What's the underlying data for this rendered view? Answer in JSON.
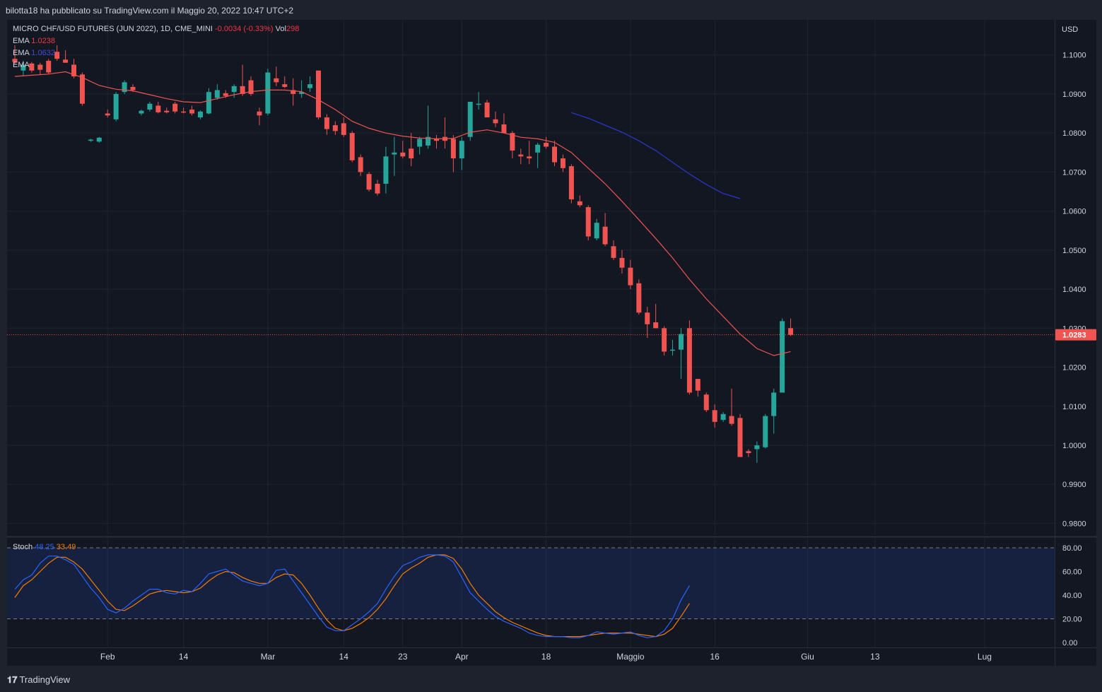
{
  "header": {
    "publish_text": "bilotta18 ha pubblicato su TradingView.com il Maggio 20, 2022 10:47 UTC+2"
  },
  "legend": {
    "symbol": "MICRO CHF/USD FUTURES (JUN 2022), 1D, CME_MINI",
    "change": "-0.0034 (-0.33%)",
    "vol_label": "Vol",
    "vol_value": "298",
    "ema1_label": "EMA",
    "ema1_value": "1.0238",
    "ema2_label": "EMA",
    "ema2_value": "1.0632",
    "ema3_label": "EMA",
    "stoch_label": "Stoch",
    "stoch_k": "48.25",
    "stoch_d": "33.49"
  },
  "branding": {
    "logo_text": "TradingView"
  },
  "colors": {
    "up": "#26a69a",
    "down": "#f05350",
    "ema_fast": "#f05350",
    "ema_slow": "#2b35c7",
    "stoch_k": "#2962ff",
    "stoch_d": "#f57c00"
  },
  "chart_data": {
    "type": "candlestick",
    "price_axis_unit": "USD",
    "last_price": "1.0283",
    "price_ticks": [
      "1.1000",
      "1.0900",
      "1.0800",
      "1.0700",
      "1.0600",
      "1.0500",
      "1.0400",
      "1.0300",
      "1.0200",
      "1.0100",
      "1.0000",
      "0.9900",
      "0.9800"
    ],
    "ylim": [
      0.977,
      1.109
    ],
    "time_ticks": [
      {
        "label": "Feb",
        "i": 11
      },
      {
        "label": "14",
        "i": 20
      },
      {
        "label": "Mar",
        "i": 30
      },
      {
        "label": "14",
        "i": 39
      },
      {
        "label": "23",
        "i": 46
      },
      {
        "label": "Apr",
        "i": 53
      },
      {
        "label": "18",
        "i": 63
      },
      {
        "label": "Maggio",
        "i": 73
      },
      {
        "label": "16",
        "i": 83
      },
      {
        "label": "Giu",
        "i": 94
      },
      {
        "label": "13",
        "i": 102
      },
      {
        "label": "Lug",
        "i": 115
      }
    ],
    "candles": [
      [
        1.099,
        1.1025,
        1.0975,
        1.0982
      ],
      [
        1.096,
        1.0985,
        1.0945,
        1.0975
      ],
      [
        1.0978,
        1.0982,
        1.0955,
        1.096
      ],
      [
        1.0975,
        1.098,
        1.095,
        1.0962
      ],
      [
        1.0985,
        1.099,
        1.095,
        1.0955
      ],
      [
        1.1008,
        1.1025,
        1.0985,
        1.099
      ],
      [
        1.0988,
        1.1012,
        1.098,
        1.098
      ],
      [
        1.0975,
        1.099,
        1.094,
        1.0945
      ],
      [
        1.095,
        1.0955,
        1.087,
        1.0875
      ],
      [
        1.078,
        1.0785,
        1.0777,
        1.0783
      ],
      [
        1.0778,
        1.079,
        1.0775,
        1.0788
      ],
      [
        1.085,
        1.086,
        1.084,
        1.0845
      ],
      [
        1.0835,
        1.0905,
        1.083,
        1.09
      ],
      [
        1.0905,
        1.0935,
        1.09,
        1.093
      ],
      [
        1.0918,
        1.0925,
        1.0905,
        1.091
      ],
      [
        1.085,
        1.086,
        1.0845,
        1.0857
      ],
      [
        1.086,
        1.088,
        1.0855,
        1.0875
      ],
      [
        1.087,
        1.088,
        1.085,
        1.0853
      ],
      [
        1.0857,
        1.0865,
        1.085,
        1.0853
      ],
      [
        1.0875,
        1.088,
        1.085,
        1.0855
      ],
      [
        1.0855,
        1.0865,
        1.085,
        1.0853
      ],
      [
        1.086,
        1.087,
        1.0845,
        1.085
      ],
      [
        1.084,
        1.0858,
        1.0835,
        1.0855
      ],
      [
        1.085,
        1.0915,
        1.0848,
        1.0905
      ],
      [
        1.089,
        1.0925,
        1.0885,
        1.091
      ],
      [
        1.0902,
        1.091,
        1.089,
        1.0895
      ],
      [
        1.0905,
        1.0925,
        1.089,
        1.092
      ],
      [
        1.092,
        1.0975,
        1.0895,
        1.09
      ],
      [
        1.0935,
        1.0945,
        1.0895,
        1.09
      ],
      [
        1.0855,
        1.0865,
        1.082,
        1.0845
      ],
      [
        1.085,
        1.0965,
        1.0845,
        1.0955
      ],
      [
        1.094,
        1.097,
        1.092,
        1.093
      ],
      [
        1.0925,
        1.0945,
        1.0915,
        1.0918
      ],
      [
        1.091,
        1.094,
        1.087,
        1.09
      ],
      [
        1.09,
        1.0935,
        1.089,
        1.0905
      ],
      [
        1.0915,
        1.0945,
        1.0905,
        1.0925
      ],
      [
        1.096,
        1.096,
        1.0835,
        1.084
      ],
      [
        1.084,
        1.0848,
        1.0795,
        1.081
      ],
      [
        1.082,
        1.083,
        1.0795,
        1.0805
      ],
      [
        1.0825,
        1.084,
        1.079,
        1.0795
      ],
      [
        1.08,
        1.0805,
        1.0725,
        1.073
      ],
      [
        1.0738,
        1.0745,
        1.069,
        1.07
      ],
      [
        1.0695,
        1.07,
        1.065,
        1.0655
      ],
      [
        1.067,
        1.068,
        1.064,
        1.0645
      ],
      [
        1.067,
        1.0765,
        1.0645,
        1.074
      ],
      [
        1.0745,
        1.079,
        1.069,
        1.075
      ],
      [
        1.075,
        1.078,
        1.0735,
        1.074
      ],
      [
        1.076,
        1.08,
        1.0715,
        1.0735
      ],
      [
        1.0765,
        1.079,
        1.0745,
        1.0785
      ],
      [
        1.0768,
        1.087,
        1.076,
        1.079
      ],
      [
        1.0785,
        1.0795,
        1.076,
        1.078
      ],
      [
        1.079,
        1.084,
        1.076,
        1.078
      ],
      [
        1.0785,
        1.0795,
        1.07,
        1.0735
      ],
      [
        1.0735,
        1.079,
        1.0705,
        1.078
      ],
      [
        1.079,
        1.088,
        1.078,
        1.088
      ],
      [
        1.0875,
        1.0905,
        1.086,
        1.0875
      ],
      [
        1.0878,
        1.0885,
        1.084,
        1.084
      ],
      [
        1.0835,
        1.0855,
        1.0815,
        1.0825
      ],
      [
        1.0822,
        1.085,
        1.08,
        1.08
      ],
      [
        1.08,
        1.0805,
        1.0735,
        1.0755
      ],
      [
        1.0745,
        1.076,
        1.072,
        1.074
      ],
      [
        1.074,
        1.078,
        1.072,
        1.0735
      ],
      [
        1.075,
        1.0775,
        1.071,
        1.077
      ],
      [
        1.0775,
        1.079,
        1.076,
        1.0765
      ],
      [
        1.0765,
        1.078,
        1.0715,
        1.0725
      ],
      [
        1.0735,
        1.0745,
        1.07,
        1.071
      ],
      [
        1.0715,
        1.072,
        1.062,
        1.063
      ],
      [
        1.0625,
        1.064,
        1.061,
        1.0615
      ],
      [
        1.061,
        1.0615,
        1.0525,
        1.0535
      ],
      [
        1.053,
        1.058,
        1.0525,
        1.057
      ],
      [
        1.056,
        1.0595,
        1.051,
        1.0515
      ],
      [
        1.051,
        1.0525,
        1.0475,
        1.048
      ],
      [
        1.048,
        1.05,
        1.044,
        1.0455
      ],
      [
        1.0455,
        1.0475,
        1.04,
        1.041
      ],
      [
        1.0415,
        1.0425,
        1.0335,
        1.034
      ],
      [
        1.034,
        1.0355,
        1.0275,
        1.031
      ],
      [
        1.0315,
        1.0362,
        1.03,
        1.03
      ],
      [
        1.03,
        1.0305,
        1.023,
        1.024
      ],
      [
        1.0245,
        1.027,
        1.023,
        1.0245
      ],
      [
        1.0245,
        1.03,
        1.017,
        1.0285
      ],
      [
        1.03,
        1.032,
        1.013,
        1.0135
      ],
      [
        1.017,
        1.0165,
        1.0125,
        1.014
      ],
      [
        1.013,
        1.0135,
        1.0085,
        1.009
      ],
      [
        1.009,
        1.0105,
        1.0045,
        1.006
      ],
      [
        1.0065,
        1.0085,
        1.006,
        1.008
      ],
      [
        1.0075,
        1.0145,
        1.005,
        1.0055
      ],
      [
        1.007,
        1.008,
        0.997,
        0.997
      ],
      [
        0.9985,
        0.999,
        0.997,
        0.998
      ],
      [
        0.999,
        1.001,
        0.9955,
        1.0
      ],
      [
        0.9995,
        1.008,
        0.9992,
        1.0075
      ],
      [
        1.0075,
        1.0145,
        1.003,
        1.0135
      ],
      [
        1.0135,
        1.0325,
        1.0135,
        1.0318
      ],
      [
        1.03,
        1.0325,
        1.028,
        1.0283
      ]
    ],
    "ema_fast": [
      [
        0,
        1.0945
      ],
      [
        2,
        1.0948
      ],
      [
        4,
        1.0951
      ],
      [
        6,
        1.0957
      ],
      [
        8,
        1.0942
      ],
      [
        10,
        1.0922
      ],
      [
        12,
        1.0912
      ],
      [
        14,
        1.0908
      ],
      [
        16,
        1.0898
      ],
      [
        18,
        1.0888
      ],
      [
        20,
        1.088
      ],
      [
        22,
        1.0878
      ],
      [
        24,
        1.0888
      ],
      [
        26,
        1.0898
      ],
      [
        28,
        1.0906
      ],
      [
        30,
        1.091
      ],
      [
        32,
        1.091
      ],
      [
        34,
        1.0906
      ],
      [
        36,
        1.0885
      ],
      [
        38,
        1.086
      ],
      [
        40,
        1.083
      ],
      [
        42,
        1.0812
      ],
      [
        44,
        1.08
      ],
      [
        46,
        1.0792
      ],
      [
        48,
        1.0787
      ],
      [
        50,
        1.0785
      ],
      [
        52,
        1.0786
      ],
      [
        54,
        1.0802
      ],
      [
        56,
        1.0808
      ],
      [
        58,
        1.08
      ],
      [
        60,
        1.0789
      ],
      [
        62,
        1.0785
      ],
      [
        64,
        1.0776
      ],
      [
        66,
        1.075
      ],
      [
        68,
        1.071
      ],
      [
        70,
        1.067
      ],
      [
        72,
        1.0625
      ],
      [
        74,
        1.0578
      ],
      [
        76,
        1.053
      ],
      [
        78,
        1.048
      ],
      [
        80,
        1.0425
      ],
      [
        82,
        1.0375
      ],
      [
        84,
        1.033
      ],
      [
        86,
        1.0285
      ],
      [
        88,
        1.0248
      ],
      [
        90,
        1.023
      ],
      [
        92,
        1.024
      ]
    ],
    "ema_slow": [
      [
        66,
        1.0852
      ],
      [
        68,
        1.0838
      ],
      [
        70,
        1.082
      ],
      [
        72,
        1.0802
      ],
      [
        74,
        1.078
      ],
      [
        76,
        1.0755
      ],
      [
        78,
        1.0725
      ],
      [
        80,
        1.0695
      ],
      [
        82,
        1.0668
      ],
      [
        84,
        1.0645
      ],
      [
        86,
        1.0632
      ]
    ],
    "stoch": {
      "ticks": [
        "80.00",
        "60.00",
        "40.00",
        "20.00",
        "0.00"
      ],
      "upper_band": 80,
      "lower_band": 20,
      "k": [
        [
          0,
          45
        ],
        [
          1,
          53
        ],
        [
          2,
          57
        ],
        [
          3,
          67
        ],
        [
          4,
          73
        ],
        [
          5,
          73
        ],
        [
          6,
          70
        ],
        [
          7,
          66
        ],
        [
          8,
          56
        ],
        [
          9,
          46
        ],
        [
          10,
          38
        ],
        [
          11,
          28
        ],
        [
          12,
          25
        ],
        [
          13,
          29
        ],
        [
          14,
          35
        ],
        [
          15,
          40
        ],
        [
          16,
          45
        ],
        [
          17,
          45
        ],
        [
          18,
          42
        ],
        [
          19,
          41
        ],
        [
          20,
          44
        ],
        [
          21,
          43
        ],
        [
          22,
          50
        ],
        [
          23,
          58
        ],
        [
          24,
          60
        ],
        [
          25,
          62
        ],
        [
          26,
          57
        ],
        [
          27,
          52
        ],
        [
          28,
          50
        ],
        [
          29,
          48
        ],
        [
          30,
          50
        ],
        [
          31,
          61
        ],
        [
          32,
          62
        ],
        [
          33,
          52
        ],
        [
          34,
          42
        ],
        [
          35,
          32
        ],
        [
          36,
          22
        ],
        [
          37,
          13
        ],
        [
          38,
          10
        ],
        [
          39,
          10
        ],
        [
          40,
          15
        ],
        [
          41,
          20
        ],
        [
          42,
          26
        ],
        [
          43,
          33
        ],
        [
          44,
          45
        ],
        [
          45,
          56
        ],
        [
          46,
          65
        ],
        [
          47,
          68
        ],
        [
          48,
          72
        ],
        [
          49,
          74
        ],
        [
          50,
          74
        ],
        [
          51,
          73
        ],
        [
          52,
          68
        ],
        [
          53,
          55
        ],
        [
          54,
          42
        ],
        [
          55,
          35
        ],
        [
          56,
          28
        ],
        [
          57,
          22
        ],
        [
          58,
          18
        ],
        [
          59,
          15
        ],
        [
          60,
          12
        ],
        [
          61,
          8
        ],
        [
          62,
          6
        ],
        [
          63,
          5
        ],
        [
          64,
          5
        ],
        [
          65,
          5
        ],
        [
          66,
          4
        ],
        [
          67,
          4
        ],
        [
          68,
          6
        ],
        [
          69,
          9
        ],
        [
          70,
          8
        ],
        [
          71,
          7
        ],
        [
          72,
          8
        ],
        [
          73,
          9
        ],
        [
          74,
          6
        ],
        [
          75,
          4
        ],
        [
          76,
          5
        ],
        [
          77,
          10
        ],
        [
          78,
          20
        ],
        [
          79,
          36
        ],
        [
          80,
          48
        ]
      ],
      "d": [
        [
          0,
          38
        ],
        [
          1,
          48
        ],
        [
          2,
          53
        ],
        [
          3,
          60
        ],
        [
          4,
          67
        ],
        [
          5,
          72
        ],
        [
          6,
          72
        ],
        [
          7,
          68
        ],
        [
          8,
          62
        ],
        [
          9,
          53
        ],
        [
          10,
          44
        ],
        [
          11,
          35
        ],
        [
          12,
          28
        ],
        [
          13,
          27
        ],
        [
          14,
          31
        ],
        [
          15,
          36
        ],
        [
          16,
          41
        ],
        [
          17,
          43
        ],
        [
          18,
          44
        ],
        [
          19,
          43
        ],
        [
          20,
          42
        ],
        [
          21,
          43
        ],
        [
          22,
          46
        ],
        [
          23,
          52
        ],
        [
          24,
          57
        ],
        [
          25,
          60
        ],
        [
          26,
          59
        ],
        [
          27,
          55
        ],
        [
          28,
          52
        ],
        [
          29,
          50
        ],
        [
          30,
          50
        ],
        [
          31,
          55
        ],
        [
          32,
          58
        ],
        [
          33,
          57
        ],
        [
          34,
          50
        ],
        [
          35,
          40
        ],
        [
          36,
          29
        ],
        [
          37,
          19
        ],
        [
          38,
          12
        ],
        [
          39,
          10
        ],
        [
          40,
          12
        ],
        [
          41,
          16
        ],
        [
          42,
          21
        ],
        [
          43,
          28
        ],
        [
          44,
          37
        ],
        [
          45,
          48
        ],
        [
          46,
          58
        ],
        [
          47,
          63
        ],
        [
          48,
          67
        ],
        [
          49,
          72
        ],
        [
          50,
          74
        ],
        [
          51,
          74
        ],
        [
          52,
          71
        ],
        [
          53,
          62
        ],
        [
          54,
          50
        ],
        [
          55,
          40
        ],
        [
          56,
          33
        ],
        [
          57,
          26
        ],
        [
          58,
          21
        ],
        [
          59,
          17
        ],
        [
          60,
          14
        ],
        [
          61,
          11
        ],
        [
          62,
          8
        ],
        [
          63,
          6
        ],
        [
          64,
          5
        ],
        [
          65,
          5
        ],
        [
          66,
          5
        ],
        [
          67,
          5
        ],
        [
          68,
          6
        ],
        [
          69,
          7
        ],
        [
          70,
          8
        ],
        [
          71,
          8
        ],
        [
          72,
          8
        ],
        [
          73,
          8
        ],
        [
          74,
          7
        ],
        [
          75,
          6
        ],
        [
          76,
          5
        ],
        [
          77,
          7
        ],
        [
          78,
          12
        ],
        [
          79,
          22
        ],
        [
          80,
          33
        ]
      ]
    }
  }
}
